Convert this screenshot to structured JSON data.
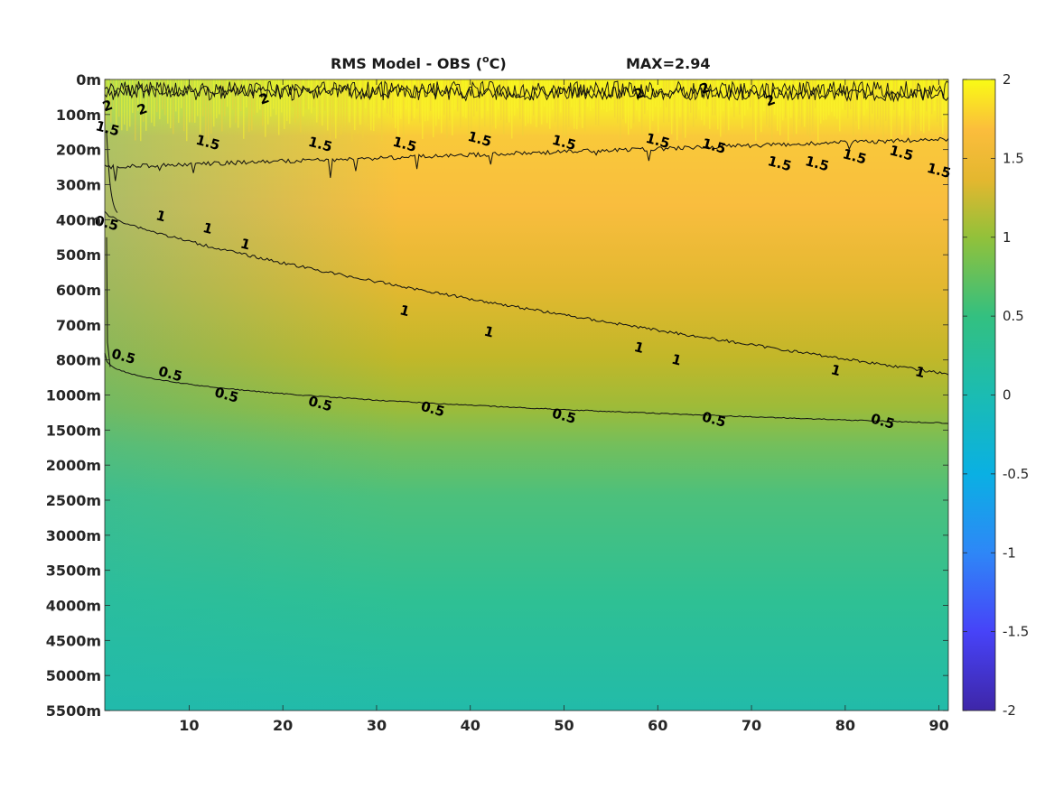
{
  "chart_data": {
    "type": "heatmap",
    "title": "RMS Model - OBS (",
    "title_super": "o",
    "title_unit": "C)",
    "max_label": "MAX=2.94",
    "x_ticks": [
      10,
      20,
      30,
      40,
      50,
      60,
      70,
      80,
      90
    ],
    "x_range": [
      1,
      91
    ],
    "y_ticks": [
      "0m",
      "100m",
      "200m",
      "300m",
      "400m",
      "500m",
      "600m",
      "700m",
      "800m",
      "1000m",
      "1500m",
      "2000m",
      "2500m",
      "3000m",
      "3500m",
      "4000m",
      "4500m",
      "5000m",
      "5500m"
    ],
    "colorbar": {
      "range": [
        -2,
        2
      ],
      "ticks": [
        "2",
        "1.5",
        "1",
        "0.5",
        "0",
        "-0.5",
        "-1",
        "-1.5",
        "-2"
      ],
      "colormap": "parula",
      "colors": [
        "#3e26a8",
        "#4743f8",
        "#2e87f7",
        "#0ab0e3",
        "#1bbcb2",
        "#33c080",
        "#92c13a",
        "#e3b72f",
        "#fbbd3c",
        "#f9fb15"
      ]
    },
    "contours": [
      {
        "level": 2,
        "label": "2",
        "depth_index": [
          0.3,
          0.45
        ]
      },
      {
        "level": 1.5,
        "label": "1.5",
        "depth_index": [
          2.5,
          1.7
        ]
      },
      {
        "level": 1,
        "label": "1",
        "depth_index": [
          3.8,
          8.4
        ]
      },
      {
        "level": 0.5,
        "label": "0.5",
        "depth_index": [
          7.8,
          9.8
        ]
      }
    ],
    "contour_labels": [
      {
        "text": "2",
        "x": 5,
        "y": 0.85
      },
      {
        "text": "2",
        "x": 18,
        "y": 0.55
      },
      {
        "text": "2",
        "x": 58,
        "y": 0.4
      },
      {
        "text": "2",
        "x": 65,
        "y": 0.25
      },
      {
        "text": "2",
        "x": 72,
        "y": 0.6
      },
      {
        "text": "1.5",
        "x": 12,
        "y": 1.8
      },
      {
        "text": "1.5",
        "x": 24,
        "y": 1.85
      },
      {
        "text": "1.5",
        "x": 33,
        "y": 1.85
      },
      {
        "text": "1.5",
        "x": 41,
        "y": 1.7
      },
      {
        "text": "1.5",
        "x": 50,
        "y": 1.8
      },
      {
        "text": "1.5",
        "x": 60,
        "y": 1.75
      },
      {
        "text": "1.5",
        "x": 66,
        "y": 1.9
      },
      {
        "text": "1.5",
        "x": 73,
        "y": 2.4
      },
      {
        "text": "1.5",
        "x": 77,
        "y": 2.4
      },
      {
        "text": "1.5",
        "x": 81,
        "y": 2.2
      },
      {
        "text": "1.5",
        "x": 86,
        "y": 2.1
      },
      {
        "text": "1.5",
        "x": 90,
        "y": 2.6
      },
      {
        "text": "1",
        "x": 7,
        "y": 3.9
      },
      {
        "text": "1",
        "x": 12,
        "y": 4.25
      },
      {
        "text": "1",
        "x": 16,
        "y": 4.7
      },
      {
        "text": "1",
        "x": 33,
        "y": 6.6
      },
      {
        "text": "1",
        "x": 42,
        "y": 7.2
      },
      {
        "text": "1",
        "x": 58,
        "y": 7.65
      },
      {
        "text": "1",
        "x": 62,
        "y": 8.0
      },
      {
        "text": "1",
        "x": 79,
        "y": 8.3
      },
      {
        "text": "1",
        "x": 88,
        "y": 8.35
      },
      {
        "text": "0.5",
        "x": 3,
        "y": 7.9
      },
      {
        "text": "0.5",
        "x": 8,
        "y": 8.4
      },
      {
        "text": "0.5",
        "x": 14,
        "y": 9.0
      },
      {
        "text": "0.5",
        "x": 24,
        "y": 9.25
      },
      {
        "text": "0.5",
        "x": 36,
        "y": 9.4
      },
      {
        "text": "0.5",
        "x": 50,
        "y": 9.6
      },
      {
        "text": "0.5",
        "x": 66,
        "y": 9.7
      },
      {
        "text": "0.5",
        "x": 84,
        "y": 9.75
      },
      {
        "text": "2",
        "x": 1.3,
        "y": 0.75
      },
      {
        "text": "1.5",
        "x": 1.3,
        "y": 1.4
      },
      {
        "text": "0.5",
        "x": 1.2,
        "y": 4.1
      }
    ]
  }
}
